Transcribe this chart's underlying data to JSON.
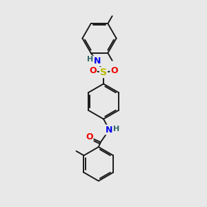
{
  "bg_color": "#e8e8e8",
  "bond_color": "#1a1a1a",
  "N_color": "#0000ee",
  "O_color": "#ee0000",
  "S_color": "#bbbb00",
  "H_color": "#336666",
  "figsize": [
    3.0,
    3.0
  ],
  "dpi": 100,
  "xlim": [
    0,
    10
  ],
  "ylim": [
    0,
    10
  ]
}
